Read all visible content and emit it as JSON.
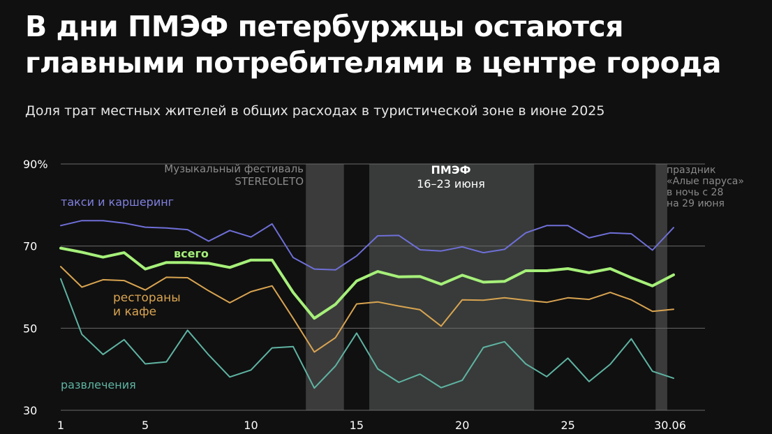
{
  "title_line1": "В дни ПМЭФ петербуржцы остаются",
  "title_line2": "главными потребителями в центре города",
  "subtitle": "Доля трат местных жителей в общих расходах в туристической зоне в июне 2025",
  "chart_data": {
    "type": "line",
    "x": [
      1,
      2,
      3,
      4,
      5,
      6,
      7,
      8,
      9,
      10,
      11,
      12,
      13,
      14,
      15,
      16,
      17,
      18,
      19,
      20,
      21,
      22,
      23,
      24,
      25,
      26,
      27,
      28,
      29,
      30
    ],
    "xlim": [
      1,
      30
    ],
    "ylim": [
      30,
      90
    ],
    "x_ticks": [
      {
        "value": 1,
        "label": "1"
      },
      {
        "value": 5,
        "label": "5"
      },
      {
        "value": 10,
        "label": "10"
      },
      {
        "value": 15,
        "label": "15"
      },
      {
        "value": 20,
        "label": "20"
      },
      {
        "value": 25,
        "label": "25"
      },
      {
        "value": 30,
        "label": "30.06"
      }
    ],
    "y_ticks": [
      {
        "value": 90,
        "label": "90%"
      },
      {
        "value": 70,
        "label": "70"
      },
      {
        "value": 50,
        "label": "50"
      },
      {
        "value": 30,
        "label": "30"
      }
    ],
    "grid": true,
    "series": [
      {
        "name": "такси и каршеринг",
        "color": "#6f6fd9",
        "width": 2,
        "values": [
          75,
          76.2,
          76.2,
          75.6,
          74.6,
          74.4,
          74,
          71.2,
          73.8,
          72.2,
          75.4,
          67.2,
          64.4,
          64.2,
          67.6,
          72.5,
          72.6,
          69.1,
          68.8,
          69.8,
          68.4,
          69.2,
          73.2,
          75,
          75,
          72,
          73.2,
          73,
          69,
          74.5
        ]
      },
      {
        "name": "всего",
        "color": "#a6f07a",
        "width": 4,
        "values": [
          69.5,
          68.5,
          67.3,
          68.4,
          64.4,
          66,
          66,
          65.8,
          64.8,
          66.6,
          66.6,
          58.7,
          52.4,
          55.8,
          61.5,
          63.8,
          62.5,
          62.6,
          60.7,
          62.9,
          61.2,
          61.4,
          64,
          64,
          64.5,
          63.5,
          64.5,
          62.3,
          60.3,
          63
        ]
      },
      {
        "name": "рестораны и кафе",
        "color": "#d9a451",
        "width": 2,
        "values": [
          65,
          60,
          61.8,
          61.6,
          59.3,
          62.4,
          62.3,
          59.1,
          56.2,
          58.9,
          60.3,
          52.4,
          44.2,
          47.7,
          55.9,
          56.4,
          55.4,
          54.5,
          50.5,
          56.9,
          56.8,
          57.4,
          56.8,
          56.3,
          57.4,
          57,
          58.7,
          56.9,
          54.1,
          54.6
        ]
      },
      {
        "name": "развлечения",
        "color": "#5fb4a3",
        "width": 2,
        "values": [
          62,
          48.5,
          43.6,
          47.2,
          41.3,
          41.8,
          49.5,
          43.5,
          38.1,
          39.8,
          45.2,
          45.5,
          35.4,
          40.8,
          48.8,
          40.1,
          36.8,
          38.8,
          35.5,
          37.3,
          45.3,
          46.7,
          41.3,
          38.2,
          42.7,
          37,
          41.2,
          47.4,
          39.5,
          37.8
        ]
      }
    ],
    "series_labels": [
      {
        "series": 0,
        "lines": [
          "такси и каршеринг"
        ],
        "color": "#8080e0"
      },
      {
        "series": 1,
        "lines": [
          "всего"
        ],
        "color": "#a6f07a",
        "bold": true
      },
      {
        "series": 2,
        "lines": [
          "рестораны",
          "и кафе"
        ],
        "color": "#d9a451"
      },
      {
        "series": 3,
        "lines": [
          "развлечения"
        ],
        "color": "#5fb4a3"
      }
    ],
    "bands": [
      {
        "from": 12.6,
        "to": 14.4,
        "fill": "#3b3b3b",
        "lines": [
          "Музыкальный фестиваль",
          "STEREOLETO"
        ],
        "text_color": "#8a8a8a",
        "anchor": "end"
      },
      {
        "from": 15.6,
        "to": 23.4,
        "fill": "#383b39",
        "lines": [
          "ПМЭФ",
          "16–23 июня"
        ],
        "text_color": "#ffffff",
        "anchor": "middle",
        "bold_first": true
      },
      {
        "from": 29.15,
        "to": 29.7,
        "fill": "#3b3b3b",
        "lines": [
          "праздник",
          "«Алые паруса»",
          "в ночь с 28",
          "на 29 июня"
        ],
        "text_color": "#8a8a8a",
        "anchor": "start"
      }
    ],
    "gridline_color": "#6a6a6a"
  }
}
